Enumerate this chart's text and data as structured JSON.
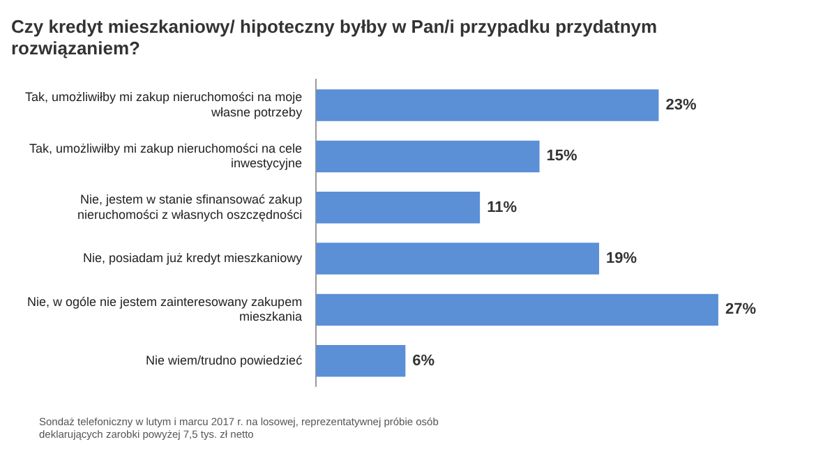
{
  "chart_data": {
    "type": "bar",
    "orientation": "horizontal",
    "title": "Czy kredyt mieszkaniowy/ hipoteczny byłby w Pan/i przypadku przydatnym rozwiązaniem?",
    "categories": [
      "Tak, umożliwiłby mi zakup nieruchomości na moje własne potrzeby",
      "Tak, umożliwiłby mi zakup nieruchomości na cele inwestycyjne",
      "Nie, jestem w stanie sfinansować zakup nieruchomości z własnych oszczędności",
      "Nie, posiadam już kredyt mieszkaniowy",
      "Nie, w ogóle nie jestem zainteresowany zakupem mieszkania",
      "Nie wiem/trudno powiedzieć"
    ],
    "values": [
      23,
      15,
      11,
      19,
      27,
      6
    ],
    "value_labels": [
      "23%",
      "15%",
      "11%",
      "19%",
      "27%",
      "6%"
    ],
    "color": "#5b8fd6",
    "annotations": [
      "Sondaż telefoniczny w lutym i marcu 2017 r. na losowej, reprezentatywnej próbie osób deklarujących zarobki powyżej 7,5 tys. zł netto"
    ]
  }
}
